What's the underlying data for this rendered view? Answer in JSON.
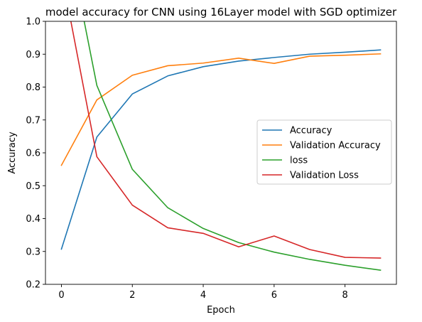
{
  "chart_data": {
    "type": "line",
    "title": "model accuracy for CNN using 16Layer model with SGD optimizer",
    "xlabel": "Epoch",
    "ylabel": "Accuracy",
    "xlim": [
      -0.45,
      9.45
    ],
    "ylim": [
      0.2,
      1.0
    ],
    "x": [
      0,
      1,
      2,
      3,
      4,
      5,
      6,
      7,
      8,
      9
    ],
    "xticks": [
      0,
      2,
      4,
      6,
      8
    ],
    "xtick_labels": [
      "0",
      "2",
      "4",
      "6",
      "8"
    ],
    "yticks": [
      0.2,
      0.3,
      0.4,
      0.5,
      0.6,
      0.7,
      0.8,
      0.9,
      1.0
    ],
    "ytick_labels": [
      "0.2",
      "0.3",
      "0.4",
      "0.5",
      "0.6",
      "0.7",
      "0.8",
      "0.9",
      "1.0"
    ],
    "grid": false,
    "legend_position": "center-right",
    "series": [
      {
        "name": "Accuracy",
        "color": "#1f77b4",
        "values": [
          0.307,
          0.648,
          0.779,
          0.834,
          0.862,
          0.879,
          0.89,
          0.9,
          0.906,
          0.913
        ]
      },
      {
        "name": "Validation Accuracy",
        "color": "#ff7f0e",
        "values": [
          0.562,
          0.761,
          0.836,
          0.865,
          0.873,
          0.888,
          0.872,
          0.894,
          0.897,
          0.901
        ]
      },
      {
        "name": "loss",
        "color": "#2ca02c",
        "values": [
          1.35,
          0.805,
          0.55,
          0.433,
          0.37,
          0.327,
          0.298,
          0.276,
          0.258,
          0.243
        ]
      },
      {
        "name": "Validation Loss",
        "color": "#d62728",
        "values": [
          1.15,
          0.588,
          0.441,
          0.372,
          0.355,
          0.314,
          0.347,
          0.306,
          0.282,
          0.28
        ]
      }
    ]
  }
}
